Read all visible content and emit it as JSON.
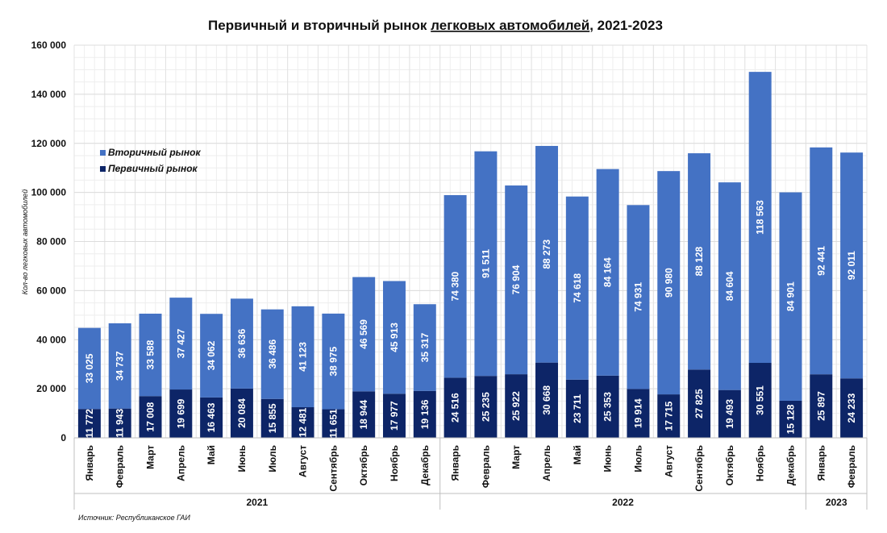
{
  "title": {
    "pre": "Первичный и вторичный рынок ",
    "underlined": "легковых автомобилей",
    "post": ", 2021-2023"
  },
  "source": "Источник: Республиканское ГАИ",
  "colors": {
    "primary": "#0d2567",
    "secondary": "#4472c4",
    "grid": "#e3e3e3",
    "axis": "#bfbfbf"
  },
  "chart_data": {
    "type": "bar",
    "stacked": true,
    "ylabel": "Кол-во легковых автомобилей",
    "ylim": [
      0,
      160000
    ],
    "yticks": [
      "0",
      "20 000",
      "40 000",
      "60 000",
      "80 000",
      "100 000",
      "120 000",
      "140 000",
      "160 000"
    ],
    "legend_position": "top-left",
    "groups": [
      {
        "label": "2021",
        "count": 12
      },
      {
        "label": "2022",
        "count": 12
      },
      {
        "label": "2023",
        "count": 2
      }
    ],
    "categories": [
      "Январь",
      "Февраль",
      "Март",
      "Апрель",
      "Май",
      "Июнь",
      "Июль",
      "Август",
      "Сентябрь",
      "Октябрь",
      "Ноябрь",
      "Декабрь",
      "Январь",
      "Февраль",
      "Март",
      "Апрель",
      "Май",
      "Июнь",
      "Июль",
      "Август",
      "Сентябрь",
      "Октябрь",
      "Ноябрь",
      "Декабрь",
      "Январь",
      "Февраль"
    ],
    "series": [
      {
        "name": "Первичный рынок",
        "color": "#0d2567",
        "values": [
          11772,
          11943,
          17008,
          19699,
          16463,
          20084,
          15855,
          12481,
          11651,
          18944,
          17977,
          19136,
          24516,
          25235,
          25922,
          30668,
          23711,
          25353,
          19914,
          17715,
          27825,
          19493,
          30551,
          15128,
          25897,
          24233
        ],
        "labels": [
          "11 772",
          "11 943",
          "17 008",
          "19 699",
          "16 463",
          "20 084",
          "15 855",
          "12 481",
          "11 651",
          "18 944",
          "17 977",
          "19 136",
          "24 516",
          "25 235",
          "25 922",
          "30 668",
          "23 711",
          "25 353",
          "19 914",
          "17 715",
          "27 825",
          "19 493",
          "30 551",
          "15 128",
          "25 897",
          "24 233"
        ]
      },
      {
        "name": "Вторичный рынок",
        "color": "#4472c4",
        "values": [
          33025,
          34737,
          33588,
          37427,
          34062,
          36636,
          36486,
          41123,
          38975,
          46569,
          45913,
          35317,
          74380,
          91511,
          76904,
          88273,
          74618,
          84164,
          74931,
          90980,
          88128,
          84604,
          118563,
          84901,
          92441,
          92011
        ],
        "labels": [
          "33 025",
          "34 737",
          "33 588",
          "37 427",
          "34 062",
          "36 636",
          "36 486",
          "41 123",
          "38 975",
          "46 569",
          "45 913",
          "35 317",
          "74 380",
          "91 511",
          "76 904",
          "88 273",
          "74 618",
          "84 164",
          "74 931",
          "90 980",
          "88 128",
          "84 604",
          "118 563",
          "84 901",
          "92 441",
          "92 011"
        ]
      }
    ]
  }
}
